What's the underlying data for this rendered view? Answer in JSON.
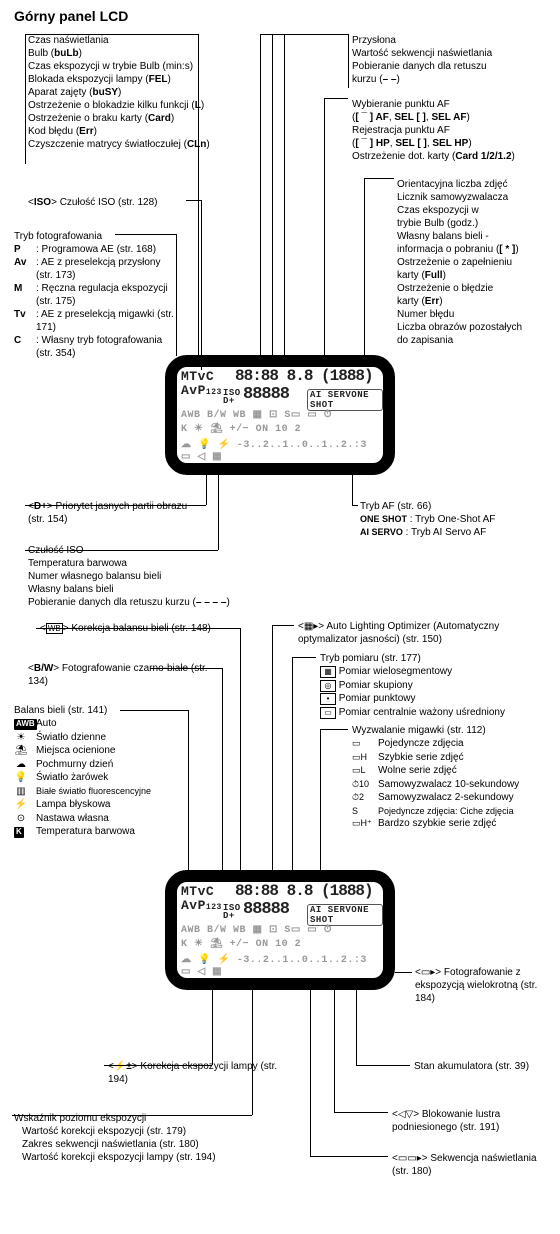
{
  "title": "Górny panel LCD",
  "topLeft": {
    "lines": [
      "Czas naświetlania",
      "Bulb (<b>buLb</b>)",
      "Czas ekspozycji w trybie Bulb (min:s)",
      "Blokada ekspozycji lampy (<b>FEL</b>)",
      "Aparat zajęty (<b>buSY</b>)",
      "Ostrzeżenie o blokadzie kilku funkcji (<b>L</b>)",
      "Ostrzeżenie o braku karty (<b>Card</b>)",
      "Kod błędu (<b>Err</b>)",
      "Czyszczenie matrycy światłoczułej (<b>CLn</b>)"
    ]
  },
  "topRight": {
    "lines": [
      "Przysłona",
      "Wartość sekwencji naświetlania",
      "Pobieranie danych dla retuszu",
      "kurzu (<b>– –</b>)"
    ]
  },
  "afSelect": {
    "lines": [
      "Wybieranie punktu AF",
      "(<b>[ ¯ ] AF</b>, <b>SEL [ ]</b>, <b>SEL AF</b>)",
      "Rejestracja punktu AF",
      "(<b>[ ¯ ] HP</b>, <b>SEL [ ]</b>, <b>SEL HP</b>)",
      "Ostrzeżenie dot. karty (<b>Card 1/2/1.2</b>)"
    ]
  },
  "isoLabel": "<ISO> Czułość ISO (str. 128)",
  "shootingMode": {
    "title": "Tryb fotografowania",
    "items": [
      {
        "k": "P",
        "v": ": Programowa AE (str. 168)"
      },
      {
        "k": "Av",
        "v": ": AE z preselekcją przysłony (str. 173)"
      },
      {
        "k": "M",
        "v": ": Ręczna regulacja ekspozycji (str. 175)"
      },
      {
        "k": "Tv",
        "v": ": AE z preselekcją migawki (str. 171)"
      },
      {
        "k": "C",
        "v": ": Własny tryb fotografowania (str. 354)"
      }
    ]
  },
  "rightCol1": {
    "lines": [
      "Orientacyjna liczba zdjęć",
      "Licznik samowyzwalacza",
      "Czas ekspozycji w",
      "trybie Bulb (godz.)",
      "Własny balans bieli -",
      "informacja o pobraniu (<b>[ * ]</b>)",
      "Ostrzeżenie o zapełnieniu",
      "karty (<b>Full</b>)",
      "Ostrzeżenie o błędzie",
      "karty (<b>Err</b>)",
      "Numer błędu",
      "Liczba obrazów pozostałych",
      "do zapisania"
    ]
  },
  "dplus": "<<b>D+</b>> Priorytet jasnych partii obrazu (str. 154)",
  "afMode": {
    "title": "Tryb AF (str. 66)",
    "items": [
      {
        "k": "ONE SHOT",
        "v": ": Tryb One-Shot AF"
      },
      {
        "k": "AI SERVO",
        "v": ": Tryb AI Servo AF"
      }
    ]
  },
  "midLeft": {
    "lines": [
      "Czułość ISO",
      "Temperatura barwowa",
      "Numer własnego balansu bieli",
      "Własny balans bieli",
      "Pobieranie danych dla retuszu kurzu (<b>– – – –</b>)"
    ]
  },
  "wbCorr": "<WB±> Korekcja balansu bieli (str. 148)",
  "bw": "<<b>B/W</b>> Fotografowanie czarno-białe (str. 134)",
  "wb": {
    "title": "Balans bieli (str. 141)",
    "items": [
      {
        "sym": "AWB",
        "label": "Auto",
        "boxed": true
      },
      {
        "sym": "☀",
        "label": "Światło dzienne"
      },
      {
        "sym": "⛱",
        "label": "Miejsca ocienione"
      },
      {
        "sym": "☁",
        "label": "Pochmurny dzień"
      },
      {
        "sym": "💡",
        "label": "Światło żarówek"
      },
      {
        "sym": "▥",
        "label": "Białe światło fluorescencyjne"
      },
      {
        "sym": "⚡",
        "label": "Lampa błyskowa"
      },
      {
        "sym": "⊙",
        "label": "Nastawa własna"
      },
      {
        "sym": "K",
        "label": "Temperatura barwowa",
        "boxed": true
      }
    ]
  },
  "alo": "<▦▸> Auto Lighting Optimizer (Automatyczny optymalizator jasności) (str. 150)",
  "metering": {
    "title": "Tryb pomiaru (str. 177)",
    "items": [
      {
        "sym": "▦",
        "label": "Pomiar wielosegmentowy"
      },
      {
        "sym": "◎",
        "label": "Pomiar skupiony"
      },
      {
        "sym": "•",
        "label": "Pomiar punktowy"
      },
      {
        "sym": "▭",
        "label": "Pomiar centralnie ważony uśredniony"
      }
    ]
  },
  "drive": {
    "title": "Wyzwalanie migawki (str. 112)",
    "items": [
      {
        "sym": "▭",
        "label": "Pojedyncze zdjęcia"
      },
      {
        "sym": "▭H",
        "label": "Szybkie serie zdjęć"
      },
      {
        "sym": "▭L",
        "label": "Wolne serie zdjęć"
      },
      {
        "sym": "⏱10",
        "label": "Samowyzwalacz 10-sekundowy"
      },
      {
        "sym": "⏱2",
        "label": "Samowyzwalacz 2-sekundowy"
      },
      {
        "sym": "S",
        "label": "Pojedyncze zdjęcia: Ciche zdjęcia"
      },
      {
        "sym": "▭H⁺",
        "label": "Bardzo szybkie serie zdjęć"
      }
    ]
  },
  "multiExp": "<▭▸> Fotografowanie z ekspozycją wielokrotną (str. 184)",
  "battery": "Stan akumulatora (str. 39)",
  "mirror": "<◁▽> Blokowanie lustra podniesionego (str. 191)",
  "bracket": "<▭▭▸> Sekwencja naświetlania (str. 180)",
  "flashComp": "<⚡±> Korekcja ekspozycji lampy (str. 194)",
  "expIndicator": {
    "title": "Wskaźnik poziomu ekspozycji",
    "lines": [
      "Wartość korekcji ekspozycji (str. 179)",
      "Zakres sekwencji naświetlania (str. 180)",
      "Wartość korekcji ekspozycji lampy (str. 194)"
    ]
  },
  "lcd": {
    "r1a": "MTvC",
    "r1b": "88:88 8.8 (1888)",
    "r2a": "AvP",
    "r2b": "123",
    "r3a": "ISO",
    "r3b": "D+",
    "r3c": "88888",
    "r3d": "AI SERVONE SHOT",
    "r4": "AWB  B/W WB ▦ ⊡  S▭ ▭ ⏱",
    "r5": "K ☀ ⛱  +/− ON       10 2",
    "r6": "☁ 💡 ⚡ -3..2..1..0..1..2.:3 ▭ ◁ ▦"
  }
}
